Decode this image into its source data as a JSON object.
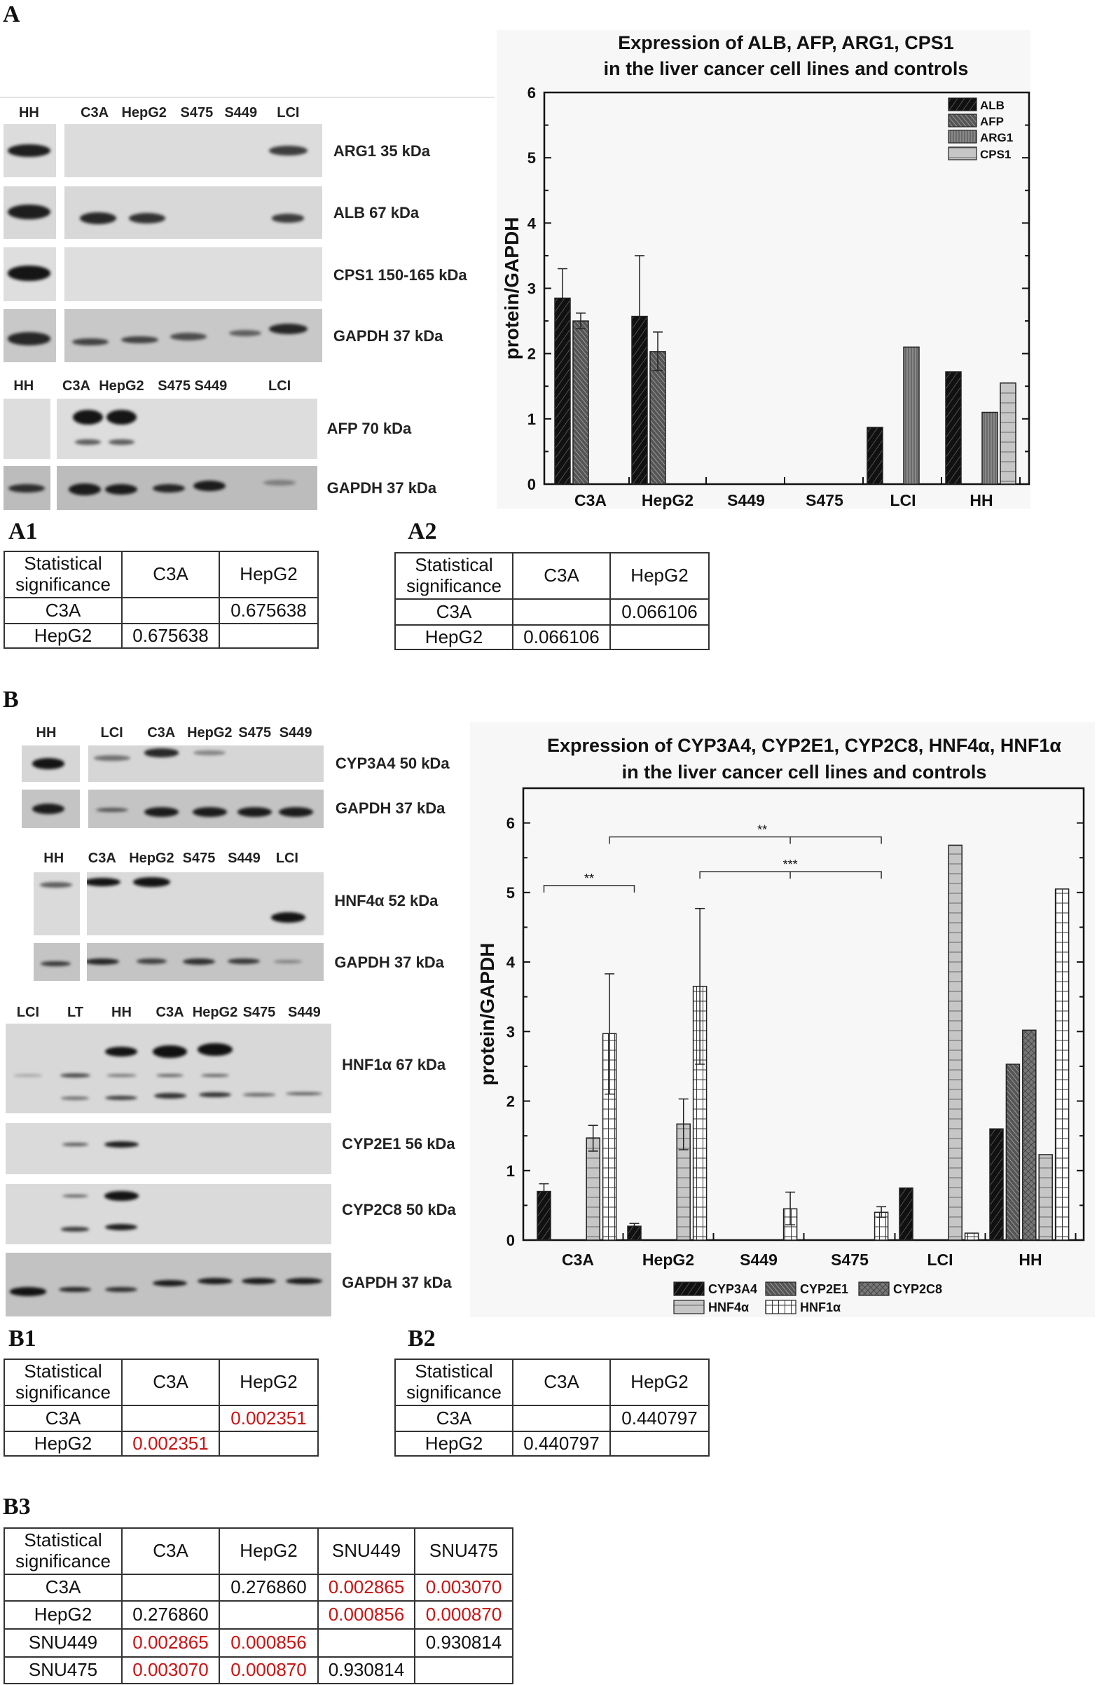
{
  "panel_labels": {
    "A": "A",
    "A1": "A1",
    "A2": "A2",
    "B": "B",
    "B1": "B1",
    "B2": "B2",
    "B3": "B3"
  },
  "blots_A": {
    "top": {
      "lanes": [
        "HH",
        "C3A",
        "HepG2",
        "S475",
        "S449",
        "LCI"
      ],
      "rows": [
        "ARG1 35 kDa",
        "ALB 67 kDa",
        "CPS1 150-165 kDa",
        "GAPDH 37 kDa"
      ]
    },
    "bottom": {
      "lanes": [
        "HH",
        "C3A",
        "HepG2",
        "S475",
        "S449",
        "LCI"
      ],
      "rows": [
        "AFP 70 kDa",
        "GAPDH 37 kDa"
      ]
    }
  },
  "blots_B": {
    "cyp3a4": {
      "lanes": [
        "HH",
        "LCI",
        "C3A",
        "HepG2",
        "S475",
        "S449"
      ],
      "rows": [
        "CYP3A4 50 kDa",
        "GAPDH 37 kDa"
      ]
    },
    "hnf4a": {
      "lanes": [
        "HH",
        "C3A",
        "HepG2",
        "S475",
        "S449",
        "LCI"
      ],
      "rows": [
        "HNF4α 52 kDa",
        "GAPDH 37 kDa"
      ]
    },
    "hnf1a": {
      "lanes": [
        "LCI",
        "LT",
        "HH",
        "C3A",
        "HepG2",
        "S475",
        "S449"
      ],
      "rows": [
        "HNF1α 67 kDa",
        "CYP2E1 56 kDa",
        "CYP2C8 50 kDa",
        "GAPDH 37 kDa"
      ]
    }
  },
  "chart_data": [
    {
      "type": "bar",
      "title": [
        "Expression of ALB, AFP, ARG1, CPS1",
        "in the liver cancer cell lines and controls"
      ],
      "xlabel": "",
      "ylabel": "protein/GAPDH",
      "categories": [
        "C3A",
        "HepG2",
        "S449",
        "S475",
        "LCI",
        "HH"
      ],
      "ylim": [
        0,
        6
      ],
      "yticks": [
        "0",
        "1",
        "2",
        "3",
        "4",
        "5",
        "6"
      ],
      "legend_position": "top-right",
      "series": [
        {
          "name": "ALB",
          "pattern": "dark-diagonal",
          "values": [
            2.85,
            2.57,
            0,
            0,
            0.87,
            1.72
          ],
          "err_upper": [
            3.3,
            3.5,
            null,
            null,
            null,
            null
          ],
          "err_lower": [
            null,
            null,
            null,
            null,
            null,
            null
          ]
        },
        {
          "name": "AFP",
          "pattern": "gray-backdiagonal",
          "values": [
            2.5,
            2.03,
            0,
            0,
            0,
            0
          ],
          "err_upper": [
            2.62,
            2.33,
            null,
            null,
            null,
            null
          ],
          "err_lower": [
            2.38,
            1.74,
            null,
            null,
            null,
            null
          ]
        },
        {
          "name": "ARG1",
          "pattern": "gray-vertical",
          "values": [
            0,
            0,
            0,
            0,
            2.1,
            1.1
          ],
          "err_upper": [
            null,
            null,
            null,
            null,
            null,
            null
          ],
          "err_lower": [
            null,
            null,
            null,
            null,
            null,
            null
          ]
        },
        {
          "name": "CPS1",
          "pattern": "light-horizontal",
          "values": [
            0,
            0,
            0,
            0,
            0,
            1.55
          ],
          "err_upper": [
            null,
            null,
            null,
            null,
            null,
            null
          ],
          "err_lower": [
            null,
            null,
            null,
            null,
            null,
            null
          ]
        }
      ],
      "annotations": []
    },
    {
      "type": "bar",
      "title": [
        "Expression of CYP3A4, CYP2E1, CYP2C8, HNF4α, HNF1α",
        "in the liver cancer cell lines and controls"
      ],
      "xlabel": "",
      "ylabel": "protein/GAPDH",
      "categories": [
        "C3A",
        "HepG2",
        "S449",
        "S475",
        "LCI",
        "HH"
      ],
      "ylim": [
        0,
        6.5
      ],
      "yticks": [
        "0",
        "1",
        "2",
        "3",
        "4",
        "5",
        "6"
      ],
      "legend_position": "bottom",
      "series": [
        {
          "name": "CYP3A4",
          "pattern": "dark-diagonal",
          "values": [
            0.7,
            0.2,
            0,
            0,
            0.75,
            1.6
          ],
          "err_upper": [
            0.81,
            0.24,
            null,
            null,
            null,
            null
          ],
          "err_lower": [
            null,
            null,
            null,
            null,
            null,
            null
          ]
        },
        {
          "name": "CYP2E1",
          "pattern": "gray-backdiagonal",
          "values": [
            0,
            0,
            0,
            0,
            0,
            2.53
          ],
          "err_upper": [
            null,
            null,
            null,
            null,
            null,
            null
          ],
          "err_lower": [
            null,
            null,
            null,
            null,
            null,
            null
          ]
        },
        {
          "name": "CYP2C8",
          "pattern": "crosshatch",
          "values": [
            0,
            0,
            0,
            0,
            0,
            3.02
          ],
          "err_upper": [
            null,
            null,
            null,
            null,
            null,
            null
          ],
          "err_lower": [
            null,
            null,
            null,
            null,
            null,
            null
          ]
        },
        {
          "name": "HNF4α",
          "pattern": "light-horizontal",
          "values": [
            1.47,
            1.67,
            0,
            0,
            5.68,
            1.23
          ],
          "err_upper": [
            1.65,
            2.03,
            null,
            null,
            null,
            null
          ],
          "err_lower": [
            1.28,
            1.3,
            null,
            null,
            null,
            null
          ]
        },
        {
          "name": "HNF1α",
          "pattern": "white-grid",
          "values": [
            2.97,
            3.65,
            0.45,
            0.4,
            0.1,
            5.05
          ],
          "err_upper": [
            3.83,
            4.77,
            0.69,
            0.48,
            null,
            null
          ],
          "err_lower": [
            2.1,
            2.53,
            0.22,
            0.33,
            null,
            null
          ]
        }
      ],
      "annotations": [
        {
          "label": "**",
          "from": [
            "C3A",
            "CYP3A4"
          ],
          "to": [
            "HepG2",
            "CYP3A4"
          ],
          "level": 5.1
        },
        {
          "label": "**",
          "from": [
            "C3A",
            "HNF1α"
          ],
          "to": [
            "S475",
            "HNF1α"
          ],
          "mid": [
            "S449",
            "HNF1α"
          ],
          "level": 5.8
        },
        {
          "label": "***",
          "from": [
            "HepG2",
            "HNF1α"
          ],
          "to": [
            "S475",
            "HNF1α"
          ],
          "mid": [
            "S449",
            "HNF1α"
          ],
          "level": 5.3
        }
      ]
    }
  ],
  "tables": {
    "A1": {
      "header": [
        "Statistical significance",
        "C3A",
        "HepG2"
      ],
      "rows": [
        [
          "C3A",
          "",
          "0.675638"
        ],
        [
          "HepG2",
          "0.675638",
          ""
        ]
      ],
      "red": []
    },
    "A2": {
      "header": [
        "Statistical significance",
        "C3A",
        "HepG2"
      ],
      "rows": [
        [
          "C3A",
          "",
          "0.066106"
        ],
        [
          "HepG2",
          "0.066106",
          ""
        ]
      ],
      "red": []
    },
    "B1": {
      "header": [
        "Statistical significance",
        "C3A",
        "HepG2"
      ],
      "rows": [
        [
          "C3A",
          "",
          "0.002351"
        ],
        [
          "HepG2",
          "0.002351",
          ""
        ]
      ],
      "red": [
        [
          0,
          2
        ],
        [
          1,
          1
        ]
      ]
    },
    "B2": {
      "header": [
        "Statistical significance",
        "C3A",
        "HepG2"
      ],
      "rows": [
        [
          "C3A",
          "",
          "0.440797"
        ],
        [
          "HepG2",
          "0.440797",
          ""
        ]
      ],
      "red": []
    },
    "B3": {
      "header": [
        "Statistical significance",
        "C3A",
        "HepG2",
        "SNU449",
        "SNU475"
      ],
      "rows": [
        [
          "C3A",
          "",
          "0.276860",
          "0.002865",
          "0.003070"
        ],
        [
          "HepG2",
          "0.276860",
          "",
          "0.000856",
          "0.000870"
        ],
        [
          "SNU449",
          "0.002865",
          "0.000856",
          "",
          "0.930814"
        ],
        [
          "SNU475",
          "0.003070",
          "0.000870",
          "0.930814",
          ""
        ]
      ],
      "red": [
        [
          0,
          3
        ],
        [
          0,
          4
        ],
        [
          1,
          3
        ],
        [
          1,
          4
        ],
        [
          2,
          1
        ],
        [
          2,
          2
        ],
        [
          3,
          1
        ],
        [
          3,
          2
        ]
      ]
    }
  },
  "colors": {
    "significant": "#c81414",
    "chart_background": "#f7f7f7"
  }
}
